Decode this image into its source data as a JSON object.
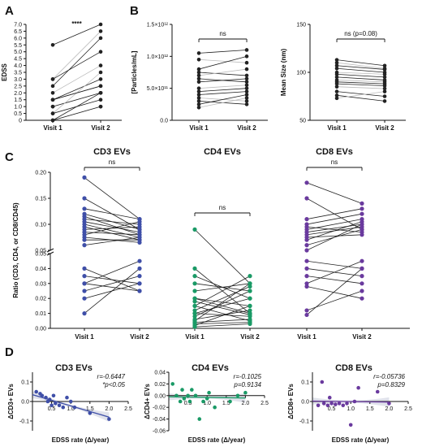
{
  "panel_letters": [
    "A",
    "B",
    "C",
    "D"
  ],
  "colors": {
    "axis": "#111111",
    "paired_line_dark": "#222222",
    "paired_line_light": "#bbbbbb",
    "cd3": "#3f4fa8",
    "cd4": "#1a9a66",
    "cd8": "#6a3a9e",
    "ci_band": "#d8dbe6"
  },
  "chart_data": [
    {
      "panel": "A",
      "type": "scatter",
      "subtype": "paired",
      "categories": [
        "Visit 1",
        "Visit 2"
      ],
      "ylabel": "EDSS",
      "ylim": [
        0,
        7
      ],
      "yticks": [
        "0",
        "0.5",
        "1.0",
        "1.5",
        "2.0",
        "2.5",
        "3.0",
        "3.5",
        "4.0",
        "4.5",
        "5.0",
        "5.5",
        "6.0",
        "6.5",
        "7.0"
      ],
      "significance": "****",
      "pairs": [
        [
          5.5,
          7.0
        ],
        [
          3.0,
          6.5
        ],
        [
          2.5,
          6.0
        ],
        [
          3.0,
          5.0
        ],
        [
          2.0,
          4.0
        ],
        [
          1.5,
          3.0
        ],
        [
          1.5,
          2.5
        ],
        [
          1.0,
          2.0
        ],
        [
          1.0,
          2.0
        ],
        [
          0.5,
          1.5
        ],
        [
          0.0,
          1.0
        ],
        [
          0.0,
          1.0
        ],
        [
          0.0,
          2.0
        ],
        [
          0.5,
          3.5
        ],
        [
          1.5,
          2.5
        ]
      ]
    },
    {
      "panel": "B",
      "type": "scatter",
      "subtype": "paired",
      "categories": [
        "Visit 1",
        "Visit 2"
      ],
      "ylabel": "[Particles/mL]",
      "ylim": [
        0,
        1500000000000
      ],
      "yticks": [
        "0.0",
        "5.0×10¹¹",
        "1.0×10¹²",
        "1.5×10¹²"
      ],
      "significance": "ns",
      "pairs": [
        [
          1050000000000,
          1100000000000
        ],
        [
          950000000000,
          900000000000
        ],
        [
          800000000000,
          1000000000000
        ],
        [
          750000000000,
          700000000000
        ],
        [
          700000000000,
          800000000000
        ],
        [
          650000000000,
          600000000000
        ],
        [
          600000000000,
          650000000000
        ],
        [
          500000000000,
          550000000000
        ],
        [
          450000000000,
          500000000000
        ],
        [
          400000000000,
          450000000000
        ],
        [
          350000000000,
          300000000000
        ],
        [
          300000000000,
          250000000000
        ],
        [
          250000000000,
          400000000000
        ],
        [
          200000000000,
          350000000000
        ]
      ]
    },
    {
      "panel": "B",
      "type": "scatter",
      "subtype": "paired",
      "categories": [
        "Visit 1",
        "Visit 2"
      ],
      "ylabel": "Mean Size (nm)",
      "ylim": [
        50,
        150
      ],
      "yticks": [
        "50",
        "100",
        "150"
      ],
      "significance": "ns (p=0.08)",
      "pairs": [
        [
          113,
          107
        ],
        [
          110,
          104
        ],
        [
          107,
          103
        ],
        [
          104,
          100
        ],
        [
          100,
          98
        ],
        [
          98,
          95
        ],
        [
          95,
          92
        ],
        [
          92,
          90
        ],
        [
          90,
          88
        ],
        [
          88,
          86
        ],
        [
          85,
          83
        ],
        [
          80,
          75
        ],
        [
          76,
          70
        ],
        [
          73,
          80
        ]
      ]
    },
    {
      "panel": "C",
      "type": "scatter",
      "subtype": "paired-broken-axis",
      "group_titles": [
        "CD3 EVs",
        "CD4 EVs",
        "CD8 EVs"
      ],
      "categories": [
        "Visit 1",
        "Visit 2",
        "Visit 1",
        "Visit 2",
        "Visit 1",
        "Visit 2"
      ],
      "ylabel": "Ratio (CD3, CD4, or CD8/CD45)",
      "yticks": [
        "0.00",
        "0.01",
        "0.02",
        "0.03",
        "0.04",
        "0.05",
        "0.05",
        "0.10",
        "0.15",
        "0.20"
      ],
      "significance": [
        "ns",
        "ns",
        "ns"
      ],
      "groups": [
        {
          "name": "CD3 EVs",
          "pairs": [
            [
              0.19,
              0.11
            ],
            [
              0.15,
              0.09
            ],
            [
              0.13,
              0.11
            ],
            [
              0.12,
              0.09
            ],
            [
              0.115,
              0.08
            ],
            [
              0.11,
              0.1
            ],
            [
              0.105,
              0.085
            ],
            [
              0.1,
              0.075
            ],
            [
              0.095,
              0.07
            ],
            [
              0.09,
              0.095
            ],
            [
              0.085,
              0.08
            ],
            [
              0.08,
              0.105
            ],
            [
              0.075,
              0.065
            ],
            [
              0.07,
              0.07
            ],
            [
              0.06,
              0.075
            ],
            [
              0.04,
              0.025
            ],
            [
              0.035,
              0.03
            ],
            [
              0.03,
              0.025
            ],
            [
              0.02,
              0.03
            ],
            [
              0.01,
              0.04
            ],
            [
              0.03,
              0.045
            ],
            [
              0.025,
              0.035
            ]
          ]
        },
        {
          "name": "CD4 EVs",
          "pairs": [
            [
              0.09,
              0.03
            ],
            [
              0.04,
              0.01
            ],
            [
              0.035,
              0.02
            ],
            [
              0.03,
              0.025
            ],
            [
              0.025,
              0.03
            ],
            [
              0.02,
              0.01
            ],
            [
              0.02,
              0.015
            ],
            [
              0.015,
              0.035
            ],
            [
              0.015,
              0.005
            ],
            [
              0.01,
              0.02
            ],
            [
              0.01,
              0.008
            ],
            [
              0.008,
              0.025
            ],
            [
              0.006,
              0.012
            ],
            [
              0.005,
              0.03
            ],
            [
              0.004,
              0.006
            ],
            [
              0.003,
              0.004
            ],
            [
              0.002,
              0.015
            ],
            [
              0.001,
              0.003
            ],
            [
              0.018,
              0.009
            ],
            [
              0.012,
              0.028
            ]
          ]
        },
        {
          "name": "CD8 EVs",
          "pairs": [
            [
              0.18,
              0.14
            ],
            [
              0.15,
              0.09
            ],
            [
              0.11,
              0.13
            ],
            [
              0.1,
              0.12
            ],
            [
              0.095,
              0.085
            ],
            [
              0.09,
              0.11
            ],
            [
              0.085,
              0.1
            ],
            [
              0.08,
              0.095
            ],
            [
              0.075,
              0.08
            ],
            [
              0.07,
              0.105
            ],
            [
              0.06,
              0.09
            ],
            [
              0.05,
              0.1
            ],
            [
              0.045,
              0.04
            ],
            [
              0.04,
              0.035
            ],
            [
              0.035,
              0.03
            ],
            [
              0.03,
              0.045
            ],
            [
              0.028,
              0.02
            ],
            [
              0.012,
              0.025
            ],
            [
              0.009,
              0.04
            ]
          ]
        }
      ]
    },
    {
      "panel": "D",
      "type": "scatter",
      "subtype": "regression",
      "title": "CD3 EVs",
      "xlabel": "EDSS rate (Δ/year)",
      "ylabel": "ΔCD3+ EVs",
      "xlim": [
        0,
        2.5
      ],
      "ylim": [
        -0.15,
        0.15
      ],
      "xticks": [
        "0.5",
        "1.0",
        "1.5",
        "2.0",
        "2.5"
      ],
      "yticks": [
        "-0.1",
        "0.0",
        "0.1"
      ],
      "stats": [
        "r=-0.6447",
        "*p<0.05"
      ],
      "x": [
        0.1,
        0.2,
        0.25,
        0.35,
        0.4,
        0.45,
        0.5,
        0.55,
        0.6,
        0.7,
        0.8,
        0.9,
        1.0,
        1.1,
        1.5,
        2.0
      ],
      "y": [
        0.05,
        0.04,
        0.03,
        0.02,
        0.0,
        0.01,
        -0.02,
        0.03,
        -0.01,
        -0.02,
        -0.03,
        0.02,
        0.0,
        -0.03,
        -0.06,
        -0.09
      ],
      "fit": {
        "x": [
          0.0,
          2.0
        ],
        "y": [
          0.035,
          -0.08
        ]
      }
    },
    {
      "panel": "D",
      "type": "scatter",
      "subtype": "regression",
      "title": "CD4 EVs",
      "xlabel": "EDSS rate (Δ/year)",
      "ylabel": "ΔCD4+ EVs",
      "xlim": [
        0,
        2.5
      ],
      "ylim": [
        -0.06,
        0.04
      ],
      "xticks": [
        "0.5",
        "1.0",
        "1.5",
        "2.0",
        "2.5"
      ],
      "yticks": [
        "-0.06",
        "-0.04",
        "-0.02",
        "0.00",
        "0.02",
        "0.04"
      ],
      "stats": [
        "r=-0.1025",
        "p=0.9134"
      ],
      "x": [
        0.1,
        0.2,
        0.3,
        0.35,
        0.4,
        0.5,
        0.55,
        0.6,
        0.7,
        0.8,
        0.9,
        1.0,
        1.05,
        1.2,
        1.6,
        1.8,
        2.0
      ],
      "y": [
        0.02,
        0.0,
        -0.01,
        0.01,
        -0.005,
        0.0,
        -0.01,
        0.01,
        0.0,
        -0.04,
        -0.01,
        -0.005,
        0.005,
        -0.02,
        -0.01,
        0.0,
        0.005
      ],
      "fit": {
        "x": [
          0.0,
          2.0
        ],
        "y": [
          -0.002,
          -0.004
        ]
      }
    },
    {
      "panel": "D",
      "type": "scatter",
      "subtype": "regression",
      "title": "CD8 EVs",
      "xlabel": "EDSS rate (Δ/year)",
      "ylabel": "ΔCD8+ EVs",
      "xlim": [
        0,
        2.5
      ],
      "ylim": [
        -0.15,
        0.15
      ],
      "xticks": [
        "0.5",
        "1.0",
        "1.5",
        "2.0",
        "2.5"
      ],
      "yticks": [
        "-0.1",
        "0.0",
        "0.1"
      ],
      "stats": [
        "r=-0.05736",
        "p=0.8329"
      ],
      "x": [
        0.15,
        0.25,
        0.3,
        0.4,
        0.45,
        0.5,
        0.6,
        0.7,
        0.8,
        0.9,
        1.0,
        1.1,
        1.2,
        1.7,
        2.0
      ],
      "y": [
        -0.02,
        0.1,
        -0.01,
        -0.02,
        0.02,
        -0.01,
        -0.015,
        -0.01,
        -0.02,
        -0.01,
        -0.12,
        0.0,
        0.07,
        0.05,
        -0.01
      ],
      "fit": {
        "x": [
          0.0,
          2.0
        ],
        "y": [
          0.002,
          -0.003
        ]
      }
    }
  ]
}
